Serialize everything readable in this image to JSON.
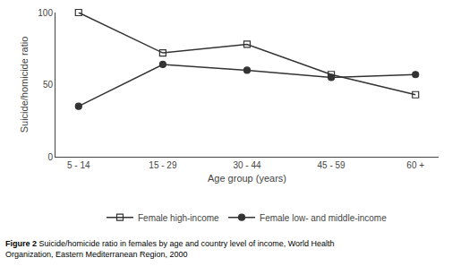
{
  "chart_data": {
    "type": "line",
    "categories": [
      "5 - 14",
      "15 - 29",
      "30 - 44",
      "45 - 59",
      "60 +"
    ],
    "series": [
      {
        "name": "Female high-income",
        "color": "#333333",
        "marker": "square-open",
        "values": [
          100,
          72,
          78,
          57,
          43
        ]
      },
      {
        "name": "Female low- and middle-income",
        "color": "#333333",
        "marker": "circle",
        "values": [
          35,
          64,
          60,
          55,
          57
        ]
      }
    ],
    "xlabel": "Age group (years)",
    "ylabel": "Suicide/homicide ratio",
    "ylim": [
      0,
      100
    ],
    "yticks": [
      0,
      50,
      100
    ],
    "grid": false,
    "legend": "bottom",
    "caption_bold": "Figure 2",
    "caption": "Suicide/homicide ratio in females by age and country level of income, World Health\nOrganization, Eastern Mediterranean Region, 2000"
  }
}
